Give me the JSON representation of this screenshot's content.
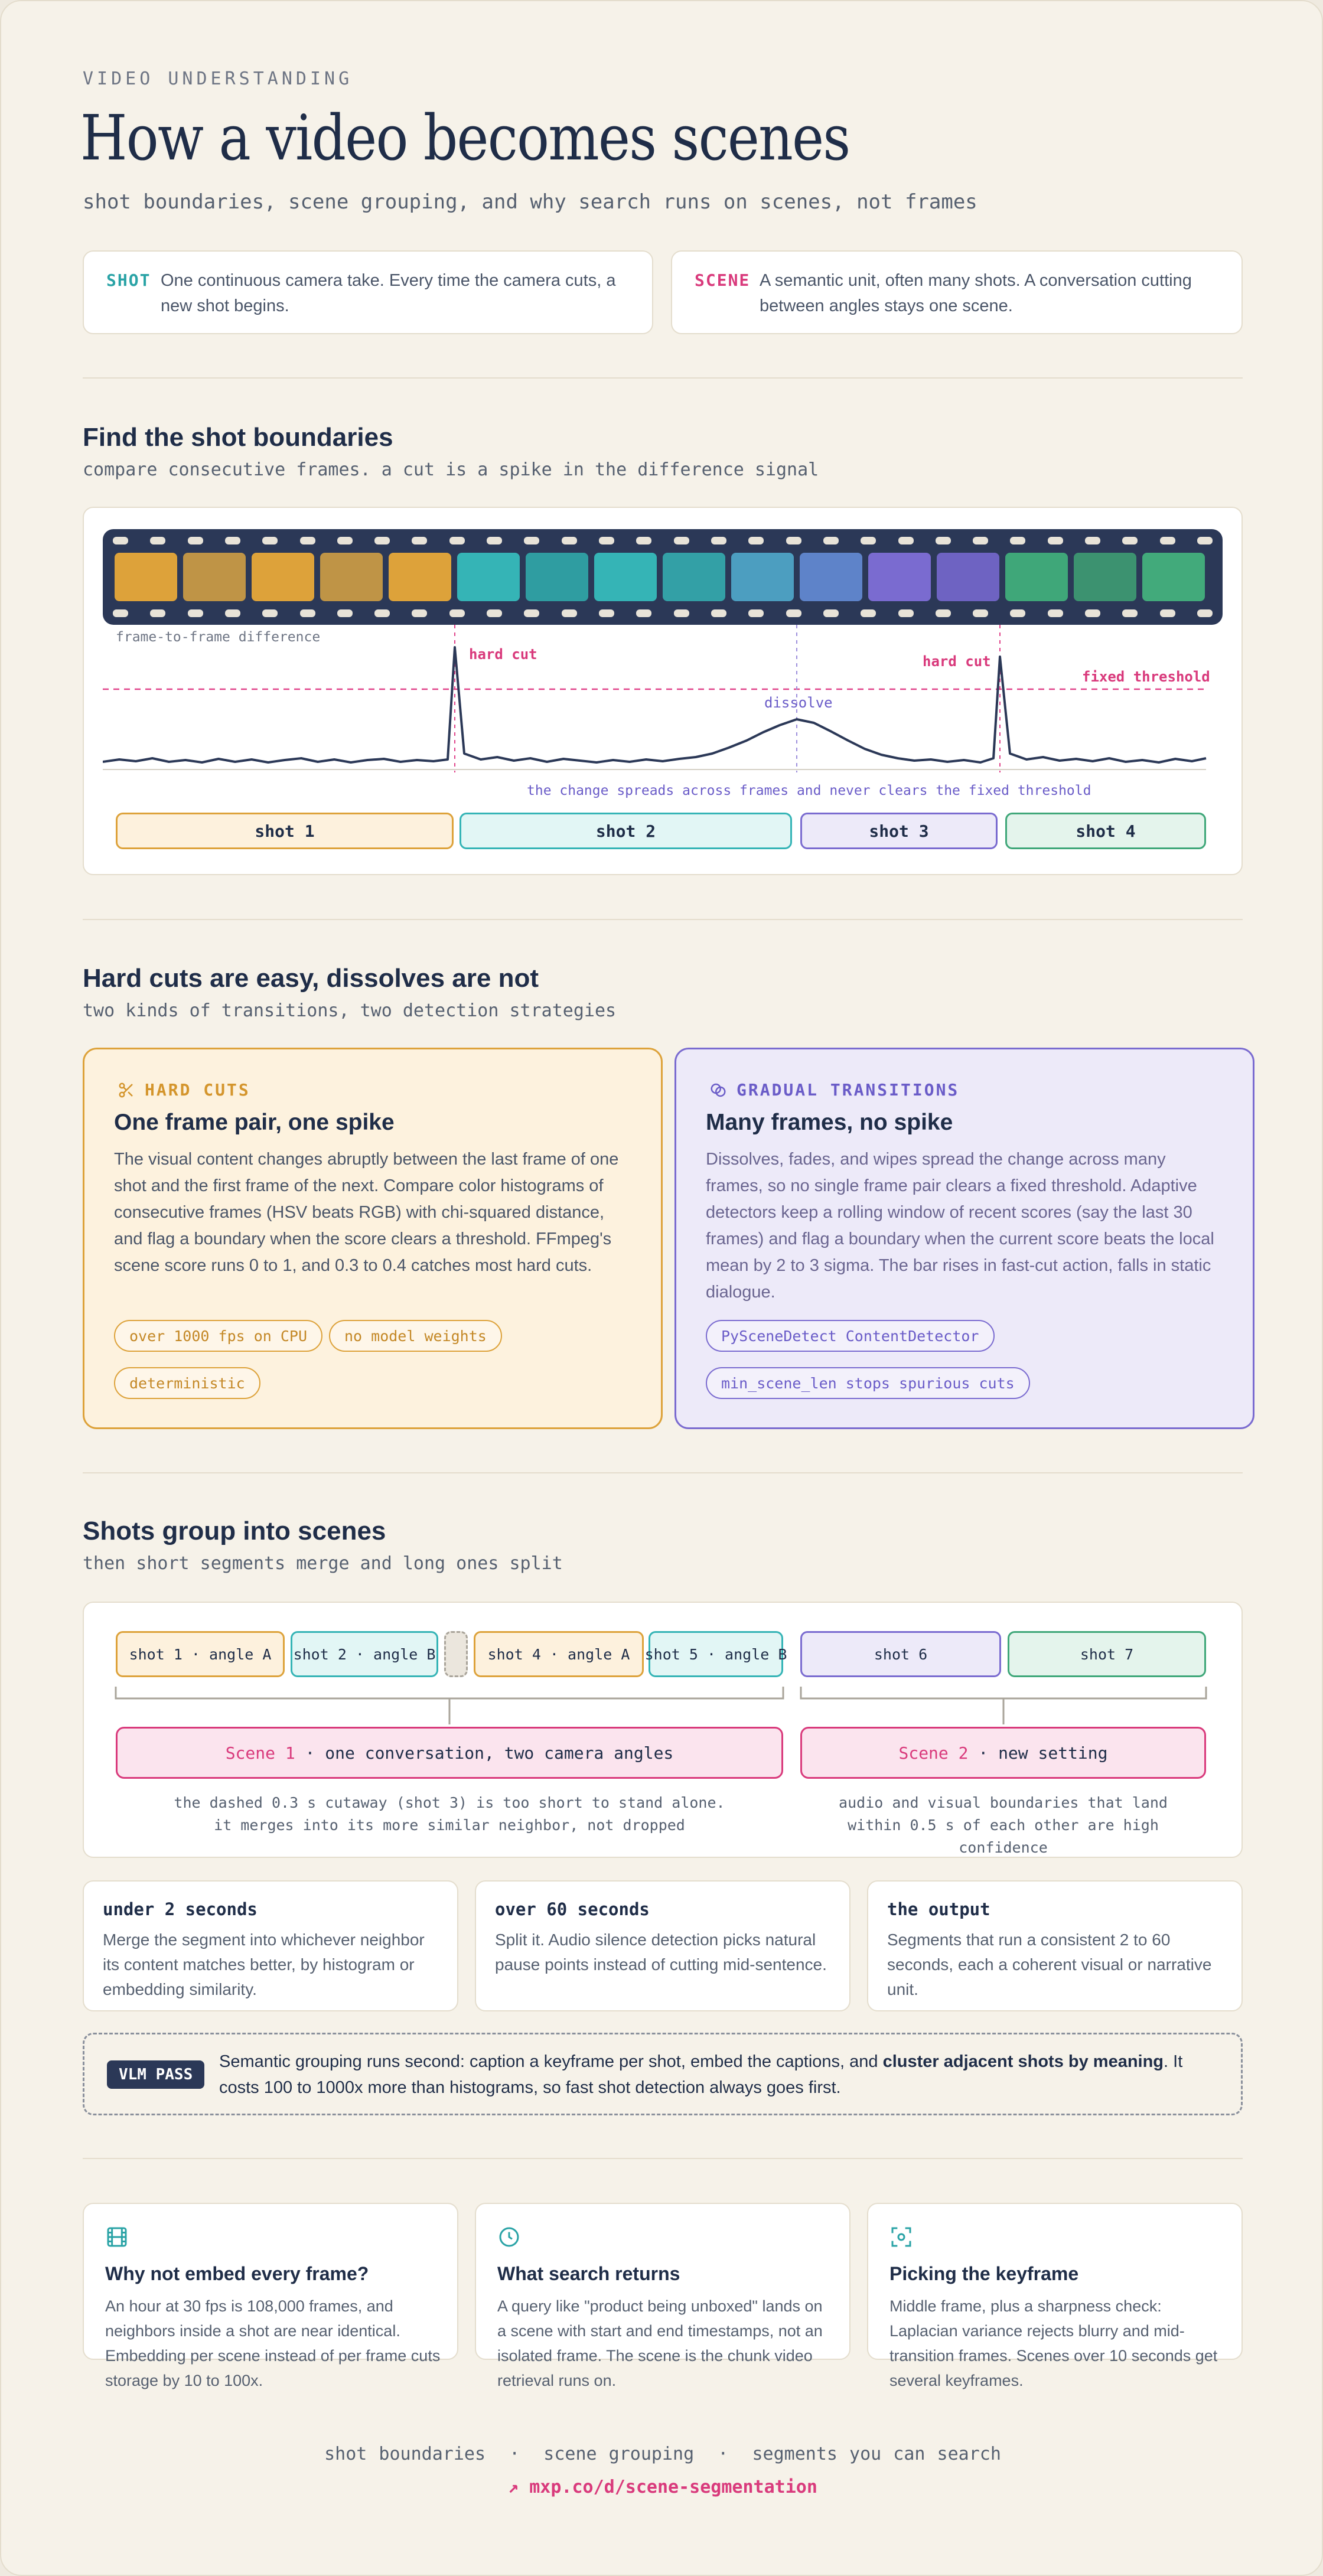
{
  "header": {
    "kicker": "VIDEO UNDERSTANDING",
    "title": "How a video becomes scenes",
    "subtitle": "shot boundaries, scene grouping, and why search runs on scenes, not frames"
  },
  "definitions": [
    {
      "tag": "SHOT",
      "text": "One continuous camera take. Every time the camera cuts, a new shot begins.",
      "color": "#2aa3a6"
    },
    {
      "tag": "SCENE",
      "text": "A semantic unit, often many shots. A conversation cutting between angles stays one scene.",
      "color": "#d93a7c"
    }
  ],
  "boundaries": {
    "heading": "Find the shot boundaries",
    "subheading": "compare consecutive frames. a cut is a spike in the difference signal",
    "frame_colors": [
      "#dda23a",
      "#bf9446",
      "#dda23a",
      "#bf9446",
      "#dda23a",
      "#35b4b6",
      "#2f9da1",
      "#35b4b6",
      "#33a0a6",
      "#4c9ec0",
      "#5e83c9",
      "#7a6bd0",
      "#6e63c2",
      "#3fa779",
      "#3c9270",
      "#42aa7b"
    ],
    "graph": {
      "label": "frame-to-frame difference",
      "hard_cut_1": "hard cut",
      "hard_cut_2": "hard cut",
      "dissolve": "dissolve",
      "threshold": "fixed threshold",
      "note": "the change spreads across frames and never clears the fixed threshold"
    },
    "shots": [
      {
        "label": "shot 1",
        "border": "#dda23a",
        "bg": "#fdf1dd"
      },
      {
        "label": "shot 2",
        "border": "#35b4b6",
        "bg": "#e2f6f5"
      },
      {
        "label": "shot 3",
        "border": "#7a6bd0",
        "bg": "#edeaf9"
      },
      {
        "label": "shot 4",
        "border": "#3fa779",
        "bg": "#e4f4ec"
      }
    ]
  },
  "transitions": {
    "heading": "Hard cuts are easy, dissolves are not",
    "subheading": "two kinds of transitions, two detection strategies",
    "hard": {
      "tag": "HARD CUTS",
      "title": "One frame pair, one spike",
      "text": "The visual content changes abruptly between the last frame of one shot and the first frame of the next. Compare color histograms of consecutive frames (HSV beats RGB) with chi-squared distance, and flag a boundary when the score clears a threshold. FFmpeg's scene score runs 0 to 1, and 0.3 to 0.4 catches most hard cuts.",
      "pills": [
        "over 1000 fps on CPU",
        "no model weights",
        "deterministic"
      ]
    },
    "gradual": {
      "tag": "GRADUAL TRANSITIONS",
      "title": "Many frames, no spike",
      "text": "Dissolves, fades, and wipes spread the change across many frames, so no single frame pair clears a fixed threshold. Adaptive detectors keep a rolling window of recent scores (say the last 30 frames) and flag a boundary when the current score beats the local mean by 2 to 3 sigma. The bar rises in fast-cut action, falls in static dialogue.",
      "pills": [
        "PySceneDetect ContentDetector",
        "min_scene_len stops spurious cuts"
      ]
    }
  },
  "grouping": {
    "heading": "Shots group into scenes",
    "subheading": "then short segments merge and long ones split",
    "segments": [
      {
        "label": "shot 1 · angle A"
      },
      {
        "label": "shot 2 · angle B"
      },
      {
        "label": ""
      },
      {
        "label": "shot 4 · angle A"
      },
      {
        "label": "shot 5 · angle B"
      },
      {
        "label": "shot 6"
      },
      {
        "label": "shot 7"
      }
    ],
    "scene1": {
      "name": "Scene 1",
      "rest": " · one conversation, two camera angles"
    },
    "scene2": {
      "name": "Scene 2",
      "rest": " · new setting"
    },
    "note1": [
      "the dashed 0.3 s cutaway (shot 3) is too short to stand alone.",
      "it merges into its more similar neighbor, not dropped"
    ],
    "note2": [
      "audio and visual boundaries that land",
      "within 0.5 s of each other are high confidence"
    ],
    "rules": [
      {
        "title": "under 2 seconds",
        "text": "Merge the segment into whichever neighbor its content matches better, by histogram or embedding similarity."
      },
      {
        "title": "over 60 seconds",
        "text": "Split it. Audio silence detection picks natural pause points instead of cutting mid-sentence."
      },
      {
        "title": "the output",
        "text": "Segments that run a consistent 2 to 60 seconds, each a coherent visual or narrative unit."
      }
    ],
    "vlm": {
      "badge": "VLM PASS",
      "text_a": "Semantic grouping runs second: caption a keyframe per shot, embed the captions, and ",
      "text_bold": "cluster adjacent shots by meaning",
      "text_b": ". It costs 100 to 1000x more than histograms, so fast shot detection always goes first."
    }
  },
  "facts": [
    {
      "icon": "film-icon",
      "title": "Why not embed every frame?",
      "text": "An hour at 30 fps is 108,000 frames, and neighbors inside a shot are near identical. Embedding per scene instead of per frame cuts storage by 10 to 100x."
    },
    {
      "icon": "clock-icon",
      "title": "What search returns",
      "text": "A query like \"product being unboxed\" lands on a scene with start and end timestamps, not an isolated frame. The scene is the chunk video retrieval runs on."
    },
    {
      "icon": "focus-icon",
      "title": "Picking the keyframe",
      "text": "Middle frame, plus a sharpness check: Laplacian variance rejects blurry and mid-transition frames. Scenes over 10 seconds get several keyframes."
    }
  ],
  "footer": {
    "links": "shot boundaries  ·  scene grouping  ·  segments you can search",
    "url": "↗ mxp.co/d/scene-segmentation"
  }
}
